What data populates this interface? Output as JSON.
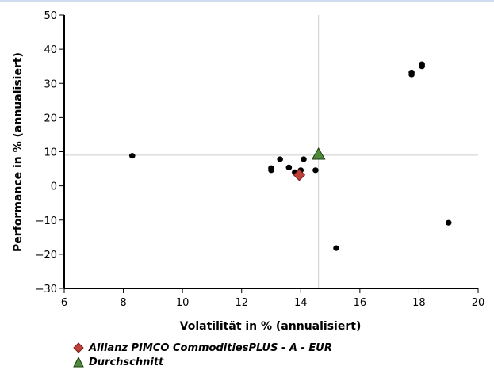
{
  "chart_data": {
    "type": "scatter",
    "xlabel": "Volatilität in % (annualisiert)",
    "ylabel": "Performance in % (annualisiert)",
    "xlim": [
      6,
      20
    ],
    "ylim": [
      -30,
      50
    ],
    "xticks": [
      "6",
      "8",
      "10",
      "12",
      "14",
      "16",
      "18",
      "20"
    ],
    "yticks": [
      "50",
      "40",
      "30",
      "20",
      "10",
      "0",
      "−10",
      "−20",
      "−30"
    ],
    "reference_lines": {
      "x": 14.6,
      "y": 9
    },
    "series": [
      {
        "name": "",
        "marker": "circle",
        "color": "#000000",
        "points": [
          {
            "x": 8.3,
            "y": 8.8
          },
          {
            "x": 13.0,
            "y": 5.2
          },
          {
            "x": 13.0,
            "y": 4.6
          },
          {
            "x": 13.3,
            "y": 7.8
          },
          {
            "x": 13.6,
            "y": 5.4
          },
          {
            "x": 13.8,
            "y": 4.0
          },
          {
            "x": 14.0,
            "y": 4.6
          },
          {
            "x": 14.1,
            "y": 7.8
          },
          {
            "x": 14.5,
            "y": 4.6
          },
          {
            "x": 15.2,
            "y": -18.2
          },
          {
            "x": 17.75,
            "y": 33.2
          },
          {
            "x": 17.75,
            "y": 32.6
          },
          {
            "x": 18.1,
            "y": 35.6
          },
          {
            "x": 18.1,
            "y": 35.0
          },
          {
            "x": 19.0,
            "y": -10.8
          }
        ]
      },
      {
        "name": "Allianz PIMCO CommoditiesPLUS - A - EUR",
        "marker": "diamond",
        "color": "#c0403a",
        "points": [
          {
            "x": 13.95,
            "y": 3.2
          }
        ]
      },
      {
        "name": "Durchschnitt",
        "marker": "triangle",
        "color": "#4d8a3a",
        "points": [
          {
            "x": 14.6,
            "y": 9.2
          }
        ]
      }
    ],
    "legend": "bottom-left"
  }
}
